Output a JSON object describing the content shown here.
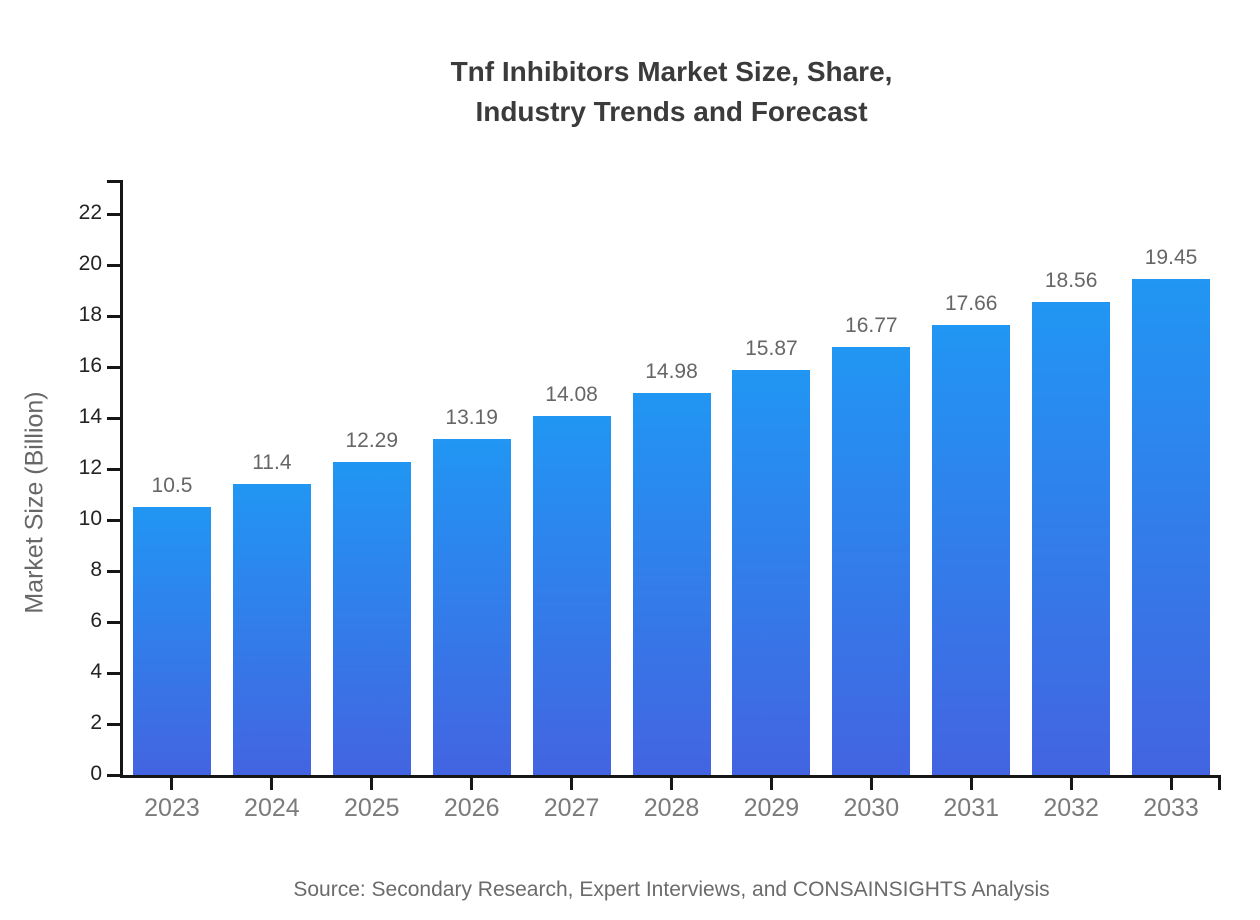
{
  "title": {
    "line1": "Tnf Inhibitors Market Size, Share,",
    "line2": "Industry Trends and Forecast"
  },
  "source": "Source: Secondary Research, Expert Interviews, and CONSAINSIGHTS Analysis",
  "chart_data": {
    "type": "bar",
    "title": "Tnf Inhibitors Market Size, Share, Industry Trends and Forecast",
    "categories": [
      "2023",
      "2024",
      "2025",
      "2026",
      "2027",
      "2028",
      "2029",
      "2030",
      "2031",
      "2032",
      "2033"
    ],
    "values": [
      10.5,
      11.4,
      12.29,
      13.19,
      14.08,
      14.98,
      15.87,
      16.77,
      17.66,
      18.56,
      19.45
    ],
    "value_labels": [
      "10.5",
      "11.4",
      "12.29",
      "13.19",
      "14.08",
      "14.98",
      "15.87",
      "16.77",
      "17.66",
      "18.56",
      "19.45"
    ],
    "xlabel": "",
    "ylabel": "Market Size (Billion)",
    "ylim": [
      0,
      23.3
    ],
    "yticks": [
      0,
      2,
      4,
      6,
      8,
      10,
      12,
      14,
      16,
      18,
      20,
      22
    ],
    "grid": false,
    "legend": false,
    "bar_gradient_top": "#2196F3",
    "bar_gradient_bottom": "#4364E1"
  },
  "colors": {
    "background": "#ffffff",
    "title_text": "#3b3b3b",
    "axis": "#161616",
    "y_tick_label": "#232323",
    "x_tick_label": "#7b7b7b",
    "value_label": "#666666",
    "ylabel_text": "#686868",
    "source_text": "#6b6b6b"
  }
}
